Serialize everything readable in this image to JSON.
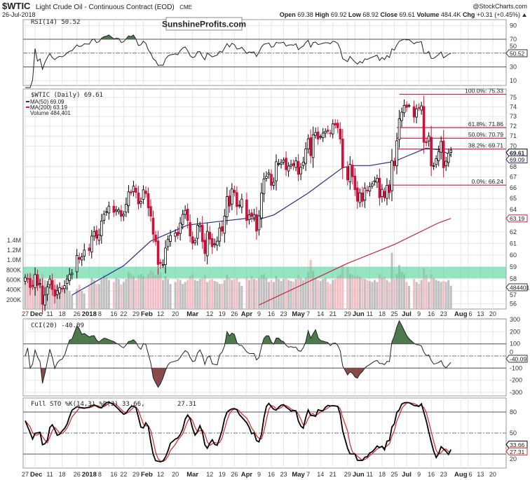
{
  "header": {
    "symbol": "$WTIC",
    "name": "Light Crude Oil - Continuous Contract (EOD)",
    "exchange": "CME",
    "copyright": "@StockCharts.com",
    "date": "26-Jul-2018",
    "open_label": "Open",
    "open": "69.38",
    "high_label": "High",
    "high": "69.92",
    "low_label": "Low",
    "low": "68.92",
    "close_label": "Close",
    "close": "69.61",
    "volume_label": "Volume",
    "volume": "484.4K",
    "chg_label": "Chg",
    "chg": "+0.31 (+0.45%)",
    "chg_icon": "triangle-up-icon"
  },
  "watermark": "SunshineProfits.com",
  "colors": {
    "up_candle": "#ffffff",
    "down_candle": "#d0103a",
    "ma50": "#2b2b8c",
    "ma200": "#cc2244",
    "fib": "#cc2244",
    "zone": "#4fd39a",
    "vol_up": "#b5b5b5",
    "vol_down": "#f2b3bd",
    "rsi_fill": "#4d7a4d",
    "cci_pos": "#4d7a4d",
    "cci_neg": "#8a4a4a",
    "sto_k": "#000000",
    "sto_d": "#e0202a"
  },
  "chart_data": {
    "type": "candlestick",
    "price_scale": "log",
    "grid": true,
    "rsi_panel": {
      "label": "RSI(14) 50.52",
      "value": "50.52",
      "levels": [
        70,
        30
      ],
      "midline": 50,
      "ticks": [
        "90",
        "70",
        "50",
        "30",
        "10"
      ],
      "ylim": [
        0,
        100
      ]
    },
    "price_panel": {
      "label": "$WTIC (Daily) 69.61",
      "last": "69.61",
      "ma50_label": "MA(50) 69.09",
      "ma50_value": "69.09",
      "ma200_label": "MA(200) 63.19",
      "ma200_value": "63.19",
      "volume_label": "Volume 484,401",
      "volume_value": "484401",
      "ylim": [
        55.5,
        76
      ],
      "ticks": [
        "75",
        "74",
        "73",
        "72",
        "71",
        "70",
        "68",
        "67",
        "66",
        "65",
        "64",
        "62",
        "61",
        "60",
        "59",
        "58",
        "57",
        "56"
      ],
      "volume_ticks": [
        "1.4M",
        "1.2M",
        "1.0M",
        "800K",
        "600K",
        "400K",
        "200K"
      ],
      "zone": [
        58.05,
        59.0
      ],
      "fib_start": "2018-06-26",
      "fib_levels": [
        {
          "label": "100.0%: 75.33",
          "price": 75.33,
          "start": "2018-06-27"
        },
        {
          "label": "61.8%: 71.86",
          "price": 71.86,
          "start": "2018-06-26"
        },
        {
          "label": "50.0%: 70.79",
          "price": 70.79,
          "start": "2018-06-26"
        },
        {
          "label": "38.2%: 69.71",
          "price": 69.71,
          "start": "2018-06-26"
        },
        {
          "label": "0.0%: 66.24",
          "price": 66.24,
          "start": "2018-06-22"
        }
      ],
      "ma50": [
        [
          "2017-12-22",
          56.7
        ],
        [
          "2018-01-22",
          59.1
        ],
        [
          "2018-02-06",
          61.2
        ],
        [
          "2018-02-27",
          62.6
        ],
        [
          "2018-03-15",
          62.9
        ],
        [
          "2018-04-02",
          63.2
        ],
        [
          "2018-04-09",
          63.1
        ],
        [
          "2018-04-17",
          63.5
        ],
        [
          "2018-05-07",
          65.5
        ],
        [
          "2018-05-25",
          67.9
        ],
        [
          "2018-06-01",
          68.1
        ],
        [
          "2018-06-11",
          68.1
        ],
        [
          "2018-06-25",
          68.5
        ],
        [
          "2018-07-02",
          69.0
        ],
        [
          "2018-07-12",
          69.8
        ],
        [
          "2018-07-20",
          69.6
        ],
        [
          "2018-07-26",
          69.09
        ]
      ],
      "ma200": [
        [
          "2018-04-09",
          55.9
        ],
        [
          "2018-05-29",
          59.3
        ],
        [
          "2018-06-25",
          60.9
        ],
        [
          "2018-07-19",
          62.8
        ],
        [
          "2018-07-26",
          63.19
        ]
      ],
      "last_bar": {
        "open": 69.38,
        "high": 69.92,
        "low": 68.92,
        "close": 69.61
      }
    },
    "cci_panel": {
      "label": "CCI(20) -40.09",
      "value": "-40.09",
      "levels": [
        100,
        -100
      ],
      "ticks": [
        "300",
        "200",
        "100",
        "0",
        "-100",
        "-200",
        "-300"
      ],
      "ylim": [
        -300,
        300
      ]
    },
    "sto_panel": {
      "label": "Full STO %K(14,3) %D(3) 33.66,",
      "k_value": "33.66",
      "d_value": "27.31",
      "levels": [
        80,
        20
      ],
      "midline": 50,
      "ticks": [
        "80",
        "50",
        "20"
      ],
      "ylim": [
        0,
        100
      ]
    },
    "x_ticks": [
      {
        "label": "27",
        "date": "2017-11-27",
        "bold": false
      },
      {
        "label": "Dec",
        "date": "2017-12-01",
        "bold": true
      },
      {
        "label": "11",
        "date": "2017-12-11",
        "bold": false
      },
      {
        "label": "18",
        "date": "2017-12-18",
        "bold": false
      },
      {
        "label": "26",
        "date": "2017-12-26",
        "bold": false
      },
      {
        "label": "2018",
        "date": "2018-01-02",
        "bold": true
      },
      {
        "label": "8",
        "date": "2018-01-08",
        "bold": false
      },
      {
        "label": "16",
        "date": "2018-01-16",
        "bold": false
      },
      {
        "label": "22",
        "date": "2018-01-22",
        "bold": false
      },
      {
        "label": "29",
        "date": "2018-01-29",
        "bold": false
      },
      {
        "label": "Feb",
        "date": "2018-02-01",
        "bold": true
      },
      {
        "label": "12",
        "date": "2018-02-12",
        "bold": false
      },
      {
        "label": "20",
        "date": "2018-02-20",
        "bold": false
      },
      {
        "label": "Mar",
        "date": "2018-03-01",
        "bold": true
      },
      {
        "label": "12",
        "date": "2018-03-12",
        "bold": false
      },
      {
        "label": "19",
        "date": "2018-03-19",
        "bold": false
      },
      {
        "label": "26",
        "date": "2018-03-26",
        "bold": false
      },
      {
        "label": "Apr",
        "date": "2018-04-02",
        "bold": true
      },
      {
        "label": "9",
        "date": "2018-04-09",
        "bold": false
      },
      {
        "label": "16",
        "date": "2018-04-16",
        "bold": false
      },
      {
        "label": "23",
        "date": "2018-04-23",
        "bold": false
      },
      {
        "label": "May",
        "date": "2018-05-01",
        "bold": true
      },
      {
        "label": "7",
        "date": "2018-05-07",
        "bold": false
      },
      {
        "label": "14",
        "date": "2018-05-14",
        "bold": false
      },
      {
        "label": "21",
        "date": "2018-05-21",
        "bold": false
      },
      {
        "label": "29",
        "date": "2018-05-29",
        "bold": false
      },
      {
        "label": "Jun",
        "date": "2018-06-01",
        "bold": true
      },
      {
        "label": "11",
        "date": "2018-06-11",
        "bold": false
      },
      {
        "label": "18",
        "date": "2018-06-18",
        "bold": false
      },
      {
        "label": "25",
        "date": "2018-06-25",
        "bold": false
      },
      {
        "label": "Jul",
        "date": "2018-07-02",
        "bold": true
      },
      {
        "label": "9",
        "date": "2018-07-09",
        "bold": false
      },
      {
        "label": "16",
        "date": "2018-07-16",
        "bold": false
      },
      {
        "label": "23",
        "date": "2018-07-23",
        "bold": false
      },
      {
        "label": "Aug",
        "date": "2018-08-01",
        "bold": true
      },
      {
        "label": "6",
        "date": "2018-08-06",
        "bold": false
      },
      {
        "label": "13",
        "date": "2018-08-13",
        "bold": false
      },
      {
        "label": "20",
        "date": "2018-08-20",
        "bold": false
      }
    ],
    "candles_columns": [
      "date",
      "close",
      "volume_k"
    ],
    "candles": [
      [
        "2017-11-27",
        58.11,
        560
      ],
      [
        "2017-11-28",
        57.99,
        610
      ],
      [
        "2017-11-29",
        57.3,
        700
      ],
      [
        "2017-11-30",
        57.4,
        720
      ],
      [
        "2017-12-01",
        58.36,
        650
      ],
      [
        "2017-12-04",
        57.47,
        590
      ],
      [
        "2017-12-05",
        57.62,
        640
      ],
      [
        "2017-12-06",
        55.96,
        720
      ],
      [
        "2017-12-07",
        56.69,
        600
      ],
      [
        "2017-12-08",
        57.36,
        520
      ],
      [
        "2017-12-11",
        57.99,
        610
      ],
      [
        "2017-12-12",
        57.14,
        640
      ],
      [
        "2017-12-13",
        56.6,
        620
      ],
      [
        "2017-12-14",
        57.04,
        480
      ],
      [
        "2017-12-15",
        57.3,
        430
      ],
      [
        "2017-12-18",
        57.16,
        400
      ],
      [
        "2017-12-19",
        57.46,
        420
      ],
      [
        "2017-12-20",
        57.99,
        460
      ],
      [
        "2017-12-21",
        58.36,
        380
      ],
      [
        "2017-12-22",
        58.47,
        300
      ],
      [
        "2017-12-26",
        59.97,
        420
      ],
      [
        "2017-12-27",
        59.64,
        500
      ],
      [
        "2017-12-28",
        59.84,
        380
      ],
      [
        "2017-12-29",
        60.42,
        330
      ],
      [
        "2018-01-02",
        60.37,
        480
      ],
      [
        "2018-01-03",
        61.63,
        640
      ],
      [
        "2018-01-04",
        62.01,
        600
      ],
      [
        "2018-01-05",
        61.44,
        520
      ],
      [
        "2018-01-08",
        61.73,
        520
      ],
      [
        "2018-01-09",
        62.96,
        620
      ],
      [
        "2018-01-10",
        63.57,
        700
      ],
      [
        "2018-01-11",
        63.8,
        650
      ],
      [
        "2018-01-12",
        64.3,
        600
      ],
      [
        "2018-01-16",
        63.73,
        560
      ],
      [
        "2018-01-17",
        63.97,
        640
      ],
      [
        "2018-01-18",
        63.95,
        620
      ],
      [
        "2018-01-19",
        63.37,
        510
      ],
      [
        "2018-01-22",
        63.57,
        560
      ],
      [
        "2018-01-23",
        64.47,
        620
      ],
      [
        "2018-01-24",
        65.61,
        760
      ],
      [
        "2018-01-25",
        65.51,
        720
      ],
      [
        "2018-01-26",
        66.14,
        680
      ],
      [
        "2018-01-29",
        65.56,
        600
      ],
      [
        "2018-01-30",
        64.5,
        700
      ],
      [
        "2018-01-31",
        64.73,
        720
      ],
      [
        "2018-02-01",
        65.8,
        680
      ],
      [
        "2018-02-02",
        65.45,
        650
      ],
      [
        "2018-02-05",
        64.15,
        720
      ],
      [
        "2018-02-06",
        63.39,
        800
      ],
      [
        "2018-02-07",
        61.79,
        760
      ],
      [
        "2018-02-08",
        61.15,
        700
      ],
      [
        "2018-02-09",
        59.2,
        820
      ],
      [
        "2018-02-12",
        59.29,
        760
      ],
      [
        "2018-02-13",
        59.19,
        600
      ],
      [
        "2018-02-14",
        60.6,
        680
      ],
      [
        "2018-02-15",
        61.34,
        620
      ],
      [
        "2018-02-16",
        61.68,
        520
      ],
      [
        "2018-02-20",
        61.9,
        560
      ],
      [
        "2018-02-21",
        61.68,
        620
      ],
      [
        "2018-02-22",
        62.77,
        600
      ],
      [
        "2018-02-23",
        63.55,
        520
      ],
      [
        "2018-02-26",
        63.91,
        560
      ],
      [
        "2018-02-27",
        63.01,
        600
      ],
      [
        "2018-02-28",
        61.64,
        680
      ],
      [
        "2018-03-01",
        61.0,
        720
      ],
      [
        "2018-03-02",
        61.25,
        600
      ],
      [
        "2018-03-05",
        62.57,
        580
      ],
      [
        "2018-03-06",
        62.6,
        620
      ],
      [
        "2018-03-07",
        61.15,
        640
      ],
      [
        "2018-03-08",
        60.12,
        700
      ],
      [
        "2018-03-09",
        62.04,
        560
      ],
      [
        "2018-03-12",
        61.36,
        600
      ],
      [
        "2018-03-13",
        60.71,
        620
      ],
      [
        "2018-03-14",
        60.96,
        580
      ],
      [
        "2018-03-15",
        61.19,
        560
      ],
      [
        "2018-03-16",
        62.34,
        520
      ],
      [
        "2018-03-19",
        62.06,
        520
      ],
      [
        "2018-03-20",
        63.4,
        600
      ],
      [
        "2018-03-21",
        65.17,
        700
      ],
      [
        "2018-03-22",
        64.3,
        640
      ],
      [
        "2018-03-23",
        65.88,
        600
      ],
      [
        "2018-03-26",
        65.55,
        620
      ],
      [
        "2018-03-27",
        64.25,
        640
      ],
      [
        "2018-03-28",
        64.38,
        560
      ],
      [
        "2018-03-29",
        64.94,
        480
      ],
      [
        "2018-04-02",
        63.01,
        640
      ],
      [
        "2018-04-03",
        63.51,
        600
      ],
      [
        "2018-04-04",
        63.37,
        680
      ],
      [
        "2018-04-05",
        63.54,
        620
      ],
      [
        "2018-04-06",
        62.06,
        600
      ],
      [
        "2018-04-09",
        63.42,
        640
      ],
      [
        "2018-04-10",
        65.51,
        700
      ],
      [
        "2018-04-11",
        66.82,
        720
      ],
      [
        "2018-04-12",
        67.07,
        640
      ],
      [
        "2018-04-13",
        67.39,
        560
      ],
      [
        "2018-04-16",
        66.22,
        600
      ],
      [
        "2018-04-17",
        66.52,
        560
      ],
      [
        "2018-04-18",
        68.47,
        680
      ],
      [
        "2018-04-19",
        68.29,
        620
      ],
      [
        "2018-04-20",
        68.38,
        580
      ],
      [
        "2018-04-23",
        68.64,
        620
      ],
      [
        "2018-04-24",
        67.7,
        640
      ],
      [
        "2018-04-25",
        68.05,
        600
      ],
      [
        "2018-04-26",
        68.19,
        580
      ],
      [
        "2018-04-27",
        68.1,
        560
      ],
      [
        "2018-04-30",
        68.57,
        620
      ],
      [
        "2018-05-01",
        67.25,
        700
      ],
      [
        "2018-05-02",
        67.93,
        640
      ],
      [
        "2018-05-03",
        68.43,
        600
      ],
      [
        "2018-05-04",
        69.72,
        640
      ],
      [
        "2018-05-07",
        70.73,
        760
      ],
      [
        "2018-05-08",
        69.06,
        1000
      ],
      [
        "2018-05-09",
        71.14,
        780
      ],
      [
        "2018-05-10",
        71.36,
        640
      ],
      [
        "2018-05-11",
        70.7,
        600
      ],
      [
        "2018-05-14",
        70.96,
        580
      ],
      [
        "2018-05-15",
        71.31,
        620
      ],
      [
        "2018-05-16",
        71.49,
        640
      ],
      [
        "2018-05-17",
        71.49,
        560
      ],
      [
        "2018-05-18",
        71.28,
        520
      ],
      [
        "2018-05-21",
        72.24,
        600
      ],
      [
        "2018-05-22",
        72.13,
        620
      ],
      [
        "2018-05-23",
        71.84,
        680
      ],
      [
        "2018-05-24",
        70.71,
        720
      ],
      [
        "2018-05-25",
        67.88,
        900
      ],
      [
        "2018-05-29",
        66.73,
        860
      ],
      [
        "2018-05-30",
        68.21,
        720
      ],
      [
        "2018-05-31",
        67.04,
        700
      ],
      [
        "2018-06-01",
        65.81,
        680
      ],
      [
        "2018-06-04",
        64.75,
        700
      ],
      [
        "2018-06-05",
        65.52,
        660
      ],
      [
        "2018-06-06",
        64.73,
        640
      ],
      [
        "2018-06-07",
        65.95,
        620
      ],
      [
        "2018-06-08",
        65.74,
        600
      ],
      [
        "2018-06-11",
        66.1,
        580
      ],
      [
        "2018-06-12",
        66.36,
        560
      ],
      [
        "2018-06-13",
        66.64,
        600
      ],
      [
        "2018-06-14",
        66.89,
        560
      ],
      [
        "2018-06-15",
        65.06,
        720
      ],
      [
        "2018-06-18",
        65.85,
        640
      ],
      [
        "2018-06-19",
        65.07,
        660
      ],
      [
        "2018-06-20",
        66.22,
        600
      ],
      [
        "2018-06-21",
        65.54,
        560
      ],
      [
        "2018-06-22",
        68.58,
        1150
      ],
      [
        "2018-06-25",
        68.08,
        620
      ],
      [
        "2018-06-26",
        70.53,
        720
      ],
      [
        "2018-06-27",
        72.76,
        900
      ],
      [
        "2018-06-28",
        73.45,
        760
      ],
      [
        "2018-06-29",
        74.15,
        720
      ],
      [
        "2018-07-02",
        73.94,
        560
      ],
      [
        "2018-07-03",
        74.14,
        480
      ],
      [
        "2018-07-05",
        72.94,
        620
      ],
      [
        "2018-07-06",
        73.8,
        560
      ],
      [
        "2018-07-09",
        73.85,
        520
      ],
      [
        "2018-07-10",
        74.11,
        600
      ],
      [
        "2018-07-11",
        70.38,
        840
      ],
      [
        "2018-07-12",
        70.33,
        700
      ],
      [
        "2018-07-13",
        71.01,
        560
      ],
      [
        "2018-07-16",
        68.06,
        720
      ],
      [
        "2018-07-17",
        68.08,
        640
      ],
      [
        "2018-07-18",
        68.76,
        600
      ],
      [
        "2018-07-19",
        69.46,
        580
      ],
      [
        "2018-07-20",
        70.46,
        560
      ],
      [
        "2018-07-23",
        67.89,
        580
      ],
      [
        "2018-07-24",
        68.52,
        560
      ],
      [
        "2018-07-25",
        69.3,
        600
      ],
      [
        "2018-07-26",
        69.61,
        484
      ]
    ]
  }
}
